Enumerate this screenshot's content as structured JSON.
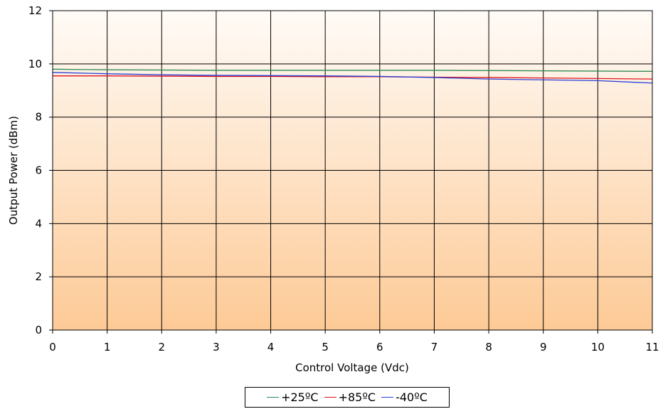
{
  "chart_data": {
    "type": "line",
    "title": "",
    "xlabel": "Control Voltage (Vdc)",
    "ylabel": "Output Power (dBm)",
    "xlim": [
      0,
      11
    ],
    "ylim": [
      0,
      12
    ],
    "xticks": [
      "0",
      "1",
      "2",
      "3",
      "4",
      "5",
      "6",
      "7",
      "8",
      "9",
      "10",
      "11"
    ],
    "yticks": [
      "0",
      "2",
      "4",
      "6",
      "8",
      "10",
      "12"
    ],
    "grid": true,
    "legend_position": "bottom",
    "background_gradient": [
      "#fffbf7",
      "#fdca96"
    ],
    "series": [
      {
        "name": "+25ºC",
        "color": "#2e8b57",
        "x": [
          0,
          1,
          2,
          3,
          4,
          5,
          6,
          7,
          8,
          9,
          10,
          11
        ],
        "y": [
          9.8,
          9.78,
          9.77,
          9.76,
          9.76,
          9.76,
          9.76,
          9.76,
          9.75,
          9.74,
          9.73,
          9.72
        ]
      },
      {
        "name": "+85ºC",
        "color": "#e0141e",
        "x": [
          0,
          1,
          2,
          3,
          4,
          5,
          6,
          7,
          8,
          9,
          10,
          11
        ],
        "y": [
          9.55,
          9.55,
          9.54,
          9.53,
          9.53,
          9.52,
          9.52,
          9.5,
          9.49,
          9.47,
          9.45,
          9.43
        ]
      },
      {
        "name": "-40ºC",
        "color": "#2840d8",
        "x": [
          0,
          1,
          2,
          3,
          4,
          5,
          6,
          7,
          8,
          9,
          10,
          11
        ],
        "y": [
          9.68,
          9.63,
          9.59,
          9.57,
          9.56,
          9.55,
          9.53,
          9.49,
          9.43,
          9.4,
          9.37,
          9.28
        ]
      }
    ]
  }
}
